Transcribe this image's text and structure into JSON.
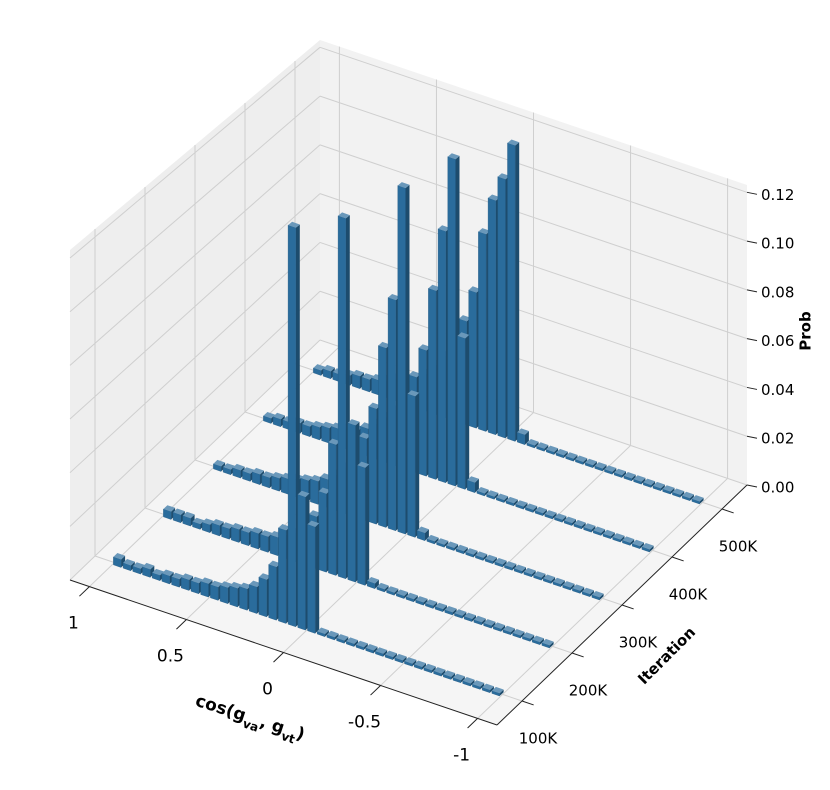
{
  "chart_data": {
    "type": "bar3d",
    "xlabel": [
      "cos(g",
      "va",
      ", g",
      "vt",
      ")"
    ],
    "ylabel": "Iteration",
    "zlabel": "Prob",
    "x": [
      0.975,
      0.925,
      0.875,
      0.825,
      0.775,
      0.725,
      0.675,
      0.625,
      0.575,
      0.525,
      0.475,
      0.425,
      0.375,
      0.325,
      0.275,
      0.225,
      0.175,
      0.125,
      0.075,
      0.025,
      -0.025,
      -0.075,
      -0.125,
      -0.175,
      -0.225,
      -0.275,
      -0.325,
      -0.375,
      -0.425,
      -0.475,
      -0.525,
      -0.575,
      -0.625,
      -0.675,
      -0.725,
      -0.775,
      -0.825,
      -0.875,
      -0.925,
      -0.975
    ],
    "series": [
      {
        "iteration": 100000,
        "color": "#2a6c9c",
        "values": [
          0.003,
          0.002,
          0.002,
          0.003,
          0.002,
          0.003,
          0.003,
          0.004,
          0.004,
          0.005,
          0.005,
          0.006,
          0.007,
          0.008,
          0.01,
          0.014,
          0.02,
          0.035,
          0.15,
          0.05,
          0.04,
          0.001,
          0.001,
          0.001,
          0.001,
          0.001,
          0.001,
          0.001,
          0.001,
          0.001,
          0.001,
          0.001,
          0.001,
          0.001,
          0.001,
          0.001,
          0.001,
          0.001,
          0.001,
          0.001
        ]
      },
      {
        "iteration": 200000,
        "color": "#2a6c9c",
        "values": [
          0.003,
          0.003,
          0.003,
          0.002,
          0.003,
          0.004,
          0.004,
          0.005,
          0.005,
          0.006,
          0.006,
          0.007,
          0.009,
          0.011,
          0.014,
          0.02,
          0.03,
          0.05,
          0.138,
          0.06,
          0.045,
          0.002,
          0.001,
          0.001,
          0.001,
          0.001,
          0.001,
          0.001,
          0.001,
          0.001,
          0.001,
          0.001,
          0.001,
          0.001,
          0.001,
          0.001,
          0.001,
          0.001,
          0.001,
          0.001
        ]
      },
      {
        "iteration": 300000,
        "color": "#2a6c9c",
        "values": [
          0.002,
          0.002,
          0.003,
          0.003,
          0.004,
          0.004,
          0.005,
          0.006,
          0.007,
          0.008,
          0.009,
          0.011,
          0.014,
          0.018,
          0.024,
          0.032,
          0.045,
          0.07,
          0.09,
          0.135,
          0.055,
          0.003,
          0.001,
          0.001,
          0.001,
          0.001,
          0.001,
          0.001,
          0.001,
          0.001,
          0.001,
          0.001,
          0.001,
          0.001,
          0.001,
          0.001,
          0.001,
          0.001,
          0.001,
          0.001
        ]
      },
      {
        "iteration": 400000,
        "color": "#2a6c9c",
        "values": [
          0.002,
          0.003,
          0.003,
          0.004,
          0.004,
          0.005,
          0.006,
          0.007,
          0.008,
          0.009,
          0.011,
          0.014,
          0.018,
          0.022,
          0.028,
          0.038,
          0.05,
          0.075,
          0.1,
          0.13,
          0.06,
          0.004,
          0.001,
          0.001,
          0.001,
          0.001,
          0.001,
          0.001,
          0.001,
          0.001,
          0.001,
          0.001,
          0.001,
          0.001,
          0.001,
          0.001,
          0.001,
          0.001,
          0.001,
          0.001
        ]
      },
      {
        "iteration": 500000,
        "color": "#2a6c9c",
        "values": [
          0.002,
          0.003,
          0.003,
          0.004,
          0.005,
          0.005,
          0.006,
          0.007,
          0.009,
          0.01,
          0.012,
          0.015,
          0.02,
          0.025,
          0.032,
          0.042,
          0.055,
          0.08,
          0.095,
          0.105,
          0.12,
          0.004,
          0.001,
          0.001,
          0.001,
          0.001,
          0.001,
          0.001,
          0.001,
          0.001,
          0.001,
          0.001,
          0.001,
          0.001,
          0.001,
          0.001,
          0.001,
          0.001,
          0.001,
          0.001
        ]
      }
    ],
    "xlim": [
      1.1,
      -1.1
    ],
    "xticks": [
      1,
      0.5,
      0,
      -0.5,
      -1
    ],
    "ylim": [
      50000,
      550000
    ],
    "yticks": [
      {
        "value": 100000,
        "label": "100K"
      },
      {
        "value": 200000,
        "label": "200K"
      },
      {
        "value": 300000,
        "label": "300K"
      },
      {
        "value": 400000,
        "label": "400K"
      },
      {
        "value": 500000,
        "label": "500K"
      }
    ],
    "zlim": [
      0,
      0.123
    ],
    "zticks": [
      {
        "value": 0,
        "label": "0.00"
      },
      {
        "value": 0.02,
        "label": "0.02"
      },
      {
        "value": 0.04,
        "label": "0.04"
      },
      {
        "value": 0.06,
        "label": "0.06"
      },
      {
        "value": 0.08,
        "label": "0.08"
      },
      {
        "value": 0.1,
        "label": "0.10"
      },
      {
        "value": 0.12,
        "label": "0.12"
      }
    ],
    "grid": true
  }
}
